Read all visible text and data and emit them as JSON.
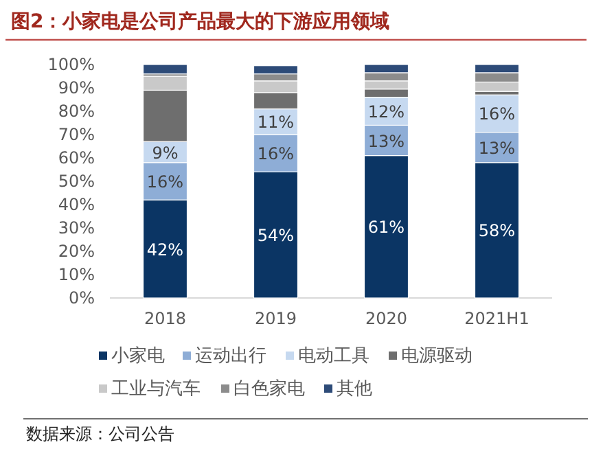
{
  "chart_data": {
    "type": "bar",
    "stacked": true,
    "title": "图2：小家电是公司产品最大的下游应用领域",
    "categories": [
      "2018",
      "2019",
      "2020",
      "2021H1"
    ],
    "series": [
      {
        "name": "小家电",
        "color": "#0b3564",
        "values": [
          42,
          54,
          61,
          58
        ],
        "value_labels": [
          "42%",
          "54%",
          "61%",
          "58%"
        ]
      },
      {
        "name": "运动出行",
        "color": "#8eadd6",
        "values": [
          16,
          16,
          13,
          13
        ],
        "value_labels": [
          "16%",
          "16%",
          "13%",
          "13%"
        ]
      },
      {
        "name": "电动工具",
        "color": "#c6d9f0",
        "values": [
          9,
          11,
          12,
          16
        ],
        "value_labels": [
          "9%",
          "11%",
          "12%",
          "16%"
        ]
      },
      {
        "name": "电源驱动",
        "color": "#6e6e6e",
        "values": [
          22,
          7,
          3.5,
          1.5
        ]
      },
      {
        "name": "工业与汽车",
        "color": "#c9c9c9",
        "values": [
          6,
          5,
          3.5,
          4
        ]
      },
      {
        "name": "白色家电",
        "color": "#8c8c8c",
        "values": [
          1,
          3,
          3.5,
          4
        ]
      },
      {
        "name": "其他",
        "color": "#2d4b78",
        "values": [
          4,
          3.5,
          3.5,
          3.5
        ]
      }
    ],
    "ylim": [
      0,
      100
    ],
    "yticks": [
      {
        "value": 0,
        "label": "0%"
      },
      {
        "value": 10,
        "label": "10%"
      },
      {
        "value": 20,
        "label": "20%"
      },
      {
        "value": 30,
        "label": "30%"
      },
      {
        "value": 40,
        "label": "40%"
      },
      {
        "value": 50,
        "label": "50%"
      },
      {
        "value": 60,
        "label": "60%"
      },
      {
        "value": 70,
        "label": "70%"
      },
      {
        "value": 80,
        "label": "80%"
      },
      {
        "value": 90,
        "label": "90%"
      },
      {
        "value": 100,
        "label": "100%"
      }
    ],
    "legend": "bottom",
    "annotations": [
      "数据来源：公司公告"
    ]
  }
}
